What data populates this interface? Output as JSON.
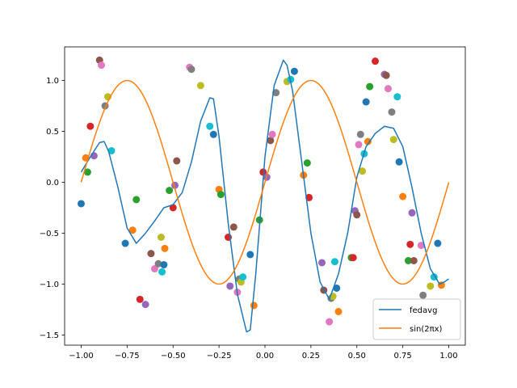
{
  "chart_data": {
    "type": "line+scatter",
    "title": "",
    "xlabel": "",
    "ylabel": "",
    "xlim": [
      -1.09,
      1.09
    ],
    "ylim": [
      -1.6,
      1.33
    ],
    "xticks": [
      -1.0,
      -0.75,
      -0.5,
      -0.25,
      0.0,
      0.25,
      0.5,
      0.75,
      1.0
    ],
    "xtick_labels": [
      "−1.00",
      "−0.75",
      "−0.50",
      "−0.25",
      "0.00",
      "0.25",
      "0.50",
      "0.75",
      "1.00"
    ],
    "yticks": [
      -1.5,
      -1.0,
      -0.5,
      0.0,
      0.5,
      1.0
    ],
    "ytick_labels": [
      "−1.5",
      "−1.0",
      "−0.5",
      "0.0",
      "0.5",
      "1.0"
    ],
    "grid": false,
    "legend_position": "bottom-right",
    "series": [
      {
        "name": "fedavg",
        "color": "#1f77b4",
        "x": [
          -1.0,
          -0.95,
          -0.9,
          -0.875,
          -0.85,
          -0.8,
          -0.75,
          -0.7,
          -0.65,
          -0.6,
          -0.55,
          -0.5,
          -0.45,
          -0.4,
          -0.375,
          -0.35,
          -0.3,
          -0.28,
          -0.25,
          -0.2,
          -0.15,
          -0.1,
          -0.08,
          -0.05,
          0.0,
          0.05,
          0.1,
          0.12,
          0.15,
          0.2,
          0.25,
          0.3,
          0.35,
          0.4,
          0.45,
          0.5,
          0.55,
          0.6,
          0.65,
          0.7,
          0.75,
          0.8,
          0.85,
          0.9,
          0.95,
          0.975,
          1.0
        ],
        "y": [
          0.1,
          0.25,
          0.39,
          0.4,
          0.3,
          -0.05,
          -0.45,
          -0.6,
          -0.5,
          -0.38,
          -0.25,
          -0.22,
          -0.1,
          0.2,
          0.4,
          0.6,
          0.83,
          0.82,
          0.45,
          -0.4,
          -1.1,
          -1.47,
          -1.45,
          -0.9,
          0.25,
          0.95,
          1.2,
          1.15,
          0.9,
          0.2,
          -0.5,
          -0.98,
          -1.15,
          -0.9,
          -0.5,
          0.05,
          0.35,
          0.48,
          0.55,
          0.53,
          0.35,
          -0.05,
          -0.5,
          -0.85,
          -1.0,
          -0.98,
          -0.95
        ]
      },
      {
        "name": "sin(2πx)",
        "color": "#ff7f0e",
        "function": "sin(2*pi*x)",
        "x_range": [
          -1.0,
          1.0
        ]
      }
    ],
    "scatter": {
      "name": "samples",
      "x": [
        -1.0,
        -0.975,
        -0.965,
        -0.95,
        -0.93,
        -0.9,
        -0.89,
        -0.87,
        -0.855,
        -0.835,
        -0.76,
        -0.72,
        -0.7,
        -0.68,
        -0.65,
        -0.62,
        -0.6,
        -0.58,
        -0.565,
        -0.56,
        -0.55,
        -0.545,
        -0.52,
        -0.5,
        -0.49,
        -0.48,
        -0.41,
        -0.4,
        -0.35,
        -0.3,
        -0.28,
        -0.25,
        -0.24,
        -0.2,
        -0.19,
        -0.17,
        -0.15,
        -0.14,
        -0.13,
        -0.12,
        -0.08,
        -0.06,
        -0.03,
        -0.01,
        0.01,
        0.03,
        0.04,
        0.06,
        0.12,
        0.14,
        0.16,
        0.21,
        0.23,
        0.24,
        0.31,
        0.32,
        0.35,
        0.36,
        0.37,
        0.38,
        0.39,
        0.4,
        0.47,
        0.48,
        0.49,
        0.5,
        0.51,
        0.52,
        0.53,
        0.54,
        0.55,
        0.56,
        0.57,
        0.6,
        0.65,
        0.66,
        0.67,
        0.69,
        0.7,
        0.72,
        0.73,
        0.75,
        0.78,
        0.79,
        0.8,
        0.81,
        0.85,
        0.86,
        0.9,
        0.92,
        0.94,
        0.96
      ],
      "y": [
        -0.21,
        0.24,
        0.1,
        0.55,
        0.26,
        1.2,
        1.15,
        0.75,
        0.84,
        0.31,
        -0.6,
        -0.47,
        -0.17,
        -1.15,
        -1.2,
        -0.7,
        -0.85,
        -0.8,
        -0.54,
        -0.88,
        -0.81,
        -0.65,
        -0.08,
        -0.25,
        -0.03,
        0.21,
        1.13,
        1.11,
        0.95,
        0.55,
        0.47,
        -0.07,
        -0.12,
        -0.54,
        -1.02,
        -0.44,
        -1.08,
        -0.95,
        -0.98,
        -0.93,
        -0.71,
        -1.21,
        -0.37,
        0.1,
        0.05,
        0.41,
        0.47,
        0.88,
        0.99,
        1.01,
        1.09,
        0.07,
        0.19,
        -0.15,
        -0.79,
        -1.06,
        -1.37,
        -1.14,
        -1.12,
        -0.78,
        -1.04,
        -1.27,
        -0.74,
        -0.74,
        -0.28,
        -0.32,
        0.37,
        0.47,
        0.11,
        0.28,
        0.79,
        0.4,
        0.94,
        1.19,
        1.06,
        1.05,
        0.92,
        0.69,
        0.42,
        0.84,
        0.2,
        -0.14,
        -0.77,
        -0.61,
        -0.3,
        -0.77,
        -0.62,
        -1.11,
        -1.02,
        -0.93,
        -0.6,
        -1.01
      ]
    }
  },
  "legend": {
    "entries": [
      {
        "label": "fedavg",
        "color": "#1f77b4"
      },
      {
        "label": "sin(2πx)",
        "color": "#ff7f0e"
      }
    ]
  }
}
